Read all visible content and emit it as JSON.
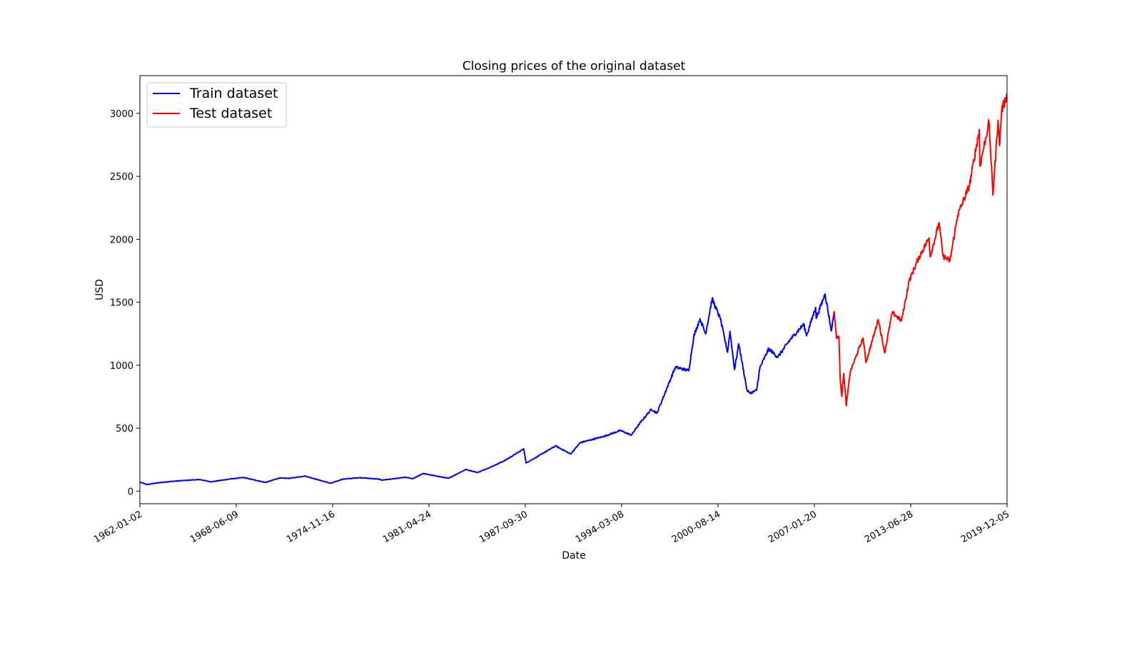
{
  "chart_data": {
    "type": "line",
    "title": "Closing prices of the original dataset",
    "xlabel": "Date",
    "ylabel": "USD",
    "x_ticks": [
      "1962-01-02",
      "1968-06-09",
      "1974-11-16",
      "1981-04-24",
      "1987-09-30",
      "1994-03-08",
      "2000-08-14",
      "2007-01-20",
      "2013-06-28",
      "2019-12-05"
    ],
    "y_ticks": [
      0,
      500,
      1000,
      1500,
      2000,
      2500,
      3000
    ],
    "xlim": [
      "1962-01-02",
      "2019-12-05"
    ],
    "ylim": [
      -100,
      3300
    ],
    "grid": false,
    "legend_position": "upper-left",
    "series": [
      {
        "name": "Train dataset",
        "color": "#0000ff",
        "points": [
          [
            "1962-01-02",
            71
          ],
          [
            "1962-06-28",
            52
          ],
          [
            "1963-01-02",
            63
          ],
          [
            "1964-01-02",
            76
          ],
          [
            "1965-01-02",
            85
          ],
          [
            "1966-01-02",
            92
          ],
          [
            "1966-10-07",
            74
          ],
          [
            "1968-01-02",
            96
          ],
          [
            "1968-12-02",
            108
          ],
          [
            "1970-05-26",
            69
          ],
          [
            "1971-04-28",
            104
          ],
          [
            "1972-01-02",
            102
          ],
          [
            "1973-01-11",
            120
          ],
          [
            "1974-10-03",
            62
          ],
          [
            "1975-07-15",
            95
          ],
          [
            "1976-09-21",
            107
          ],
          [
            "1977-12-31",
            95
          ],
          [
            "1978-03-06",
            87
          ],
          [
            "1979-10-01",
            110
          ],
          [
            "1980-03-27",
            98
          ],
          [
            "1980-11-28",
            140
          ],
          [
            "1982-08-12",
            102
          ],
          [
            "1983-10-10",
            172
          ],
          [
            "1984-07-24",
            148
          ],
          [
            "1985-06-01",
            190
          ],
          [
            "1986-06-01",
            245
          ],
          [
            "1987-08-25",
            336
          ],
          [
            "1987-10-19",
            224
          ],
          [
            "1988-06-01",
            265
          ],
          [
            "1989-10-09",
            359
          ],
          [
            "1990-10-11",
            295
          ],
          [
            "1991-06-01",
            385
          ],
          [
            "1993-01-02",
            435
          ],
          [
            "1994-02-02",
            482
          ],
          [
            "1994-11-01",
            445
          ],
          [
            "1995-05-01",
            530
          ],
          [
            "1996-03-01",
            650
          ],
          [
            "1996-07-16",
            620
          ],
          [
            "1997-03-01",
            805
          ],
          [
            "1997-10-07",
            985
          ],
          [
            "1998-08-31",
            957
          ],
          [
            "1998-12-31",
            1229
          ],
          [
            "1999-06-01",
            1370
          ],
          [
            "1999-10-15",
            1250
          ],
          [
            "2000-03-24",
            1527
          ],
          [
            "2000-10-12",
            1365
          ],
          [
            "2001-04-04",
            1103
          ],
          [
            "2001-06-01",
            1270
          ],
          [
            "2001-09-21",
            966
          ],
          [
            "2002-01-02",
            1170
          ],
          [
            "2002-07-23",
            800
          ],
          [
            "2002-10-09",
            777
          ],
          [
            "2003-03-11",
            800
          ],
          [
            "2003-06-01",
            980
          ],
          [
            "2004-01-02",
            1130
          ],
          [
            "2004-08-12",
            1064
          ],
          [
            "2005-06-01",
            1200
          ],
          [
            "2006-05-05",
            1325
          ],
          [
            "2006-07-13",
            1234
          ],
          [
            "2007-02-20",
            1459
          ],
          [
            "2007-03-05",
            1374
          ],
          [
            "2007-10-09",
            1565
          ],
          [
            "2008-03-10",
            1273
          ],
          [
            "2008-04-30",
            1390
          ]
        ]
      },
      {
        "name": "Test dataset",
        "color": "#ff0000",
        "points": [
          [
            "2008-04-30",
            1390
          ],
          [
            "2008-05-19",
            1426
          ],
          [
            "2008-07-15",
            1214
          ],
          [
            "2008-09-10",
            1230
          ],
          [
            "2008-10-10",
            899
          ],
          [
            "2008-11-20",
            752
          ],
          [
            "2009-01-06",
            934
          ],
          [
            "2009-03-09",
            677
          ],
          [
            "2009-06-12",
            946
          ],
          [
            "2010-04-23",
            1217
          ],
          [
            "2010-07-02",
            1022
          ],
          [
            "2011-04-29",
            1363
          ],
          [
            "2011-10-03",
            1099
          ],
          [
            "2012-04-02",
            1419
          ],
          [
            "2012-11-15",
            1353
          ],
          [
            "2013-05-21",
            1669
          ],
          [
            "2013-12-31",
            1848
          ],
          [
            "2014-09-18",
            2011
          ],
          [
            "2014-10-15",
            1862
          ],
          [
            "2015-05-21",
            2131
          ],
          [
            "2015-08-25",
            1867
          ],
          [
            "2016-02-11",
            1829
          ],
          [
            "2016-08-15",
            2190
          ],
          [
            "2017-06-01",
            2430
          ],
          [
            "2018-01-26",
            2873
          ],
          [
            "2018-02-08",
            2581
          ],
          [
            "2018-09-20",
            2931
          ],
          [
            "2018-12-24",
            2351
          ],
          [
            "2019-04-30",
            2946
          ],
          [
            "2019-06-03",
            2744
          ],
          [
            "2019-07-26",
            3025
          ],
          [
            "2019-12-05",
            3150
          ]
        ]
      }
    ]
  }
}
